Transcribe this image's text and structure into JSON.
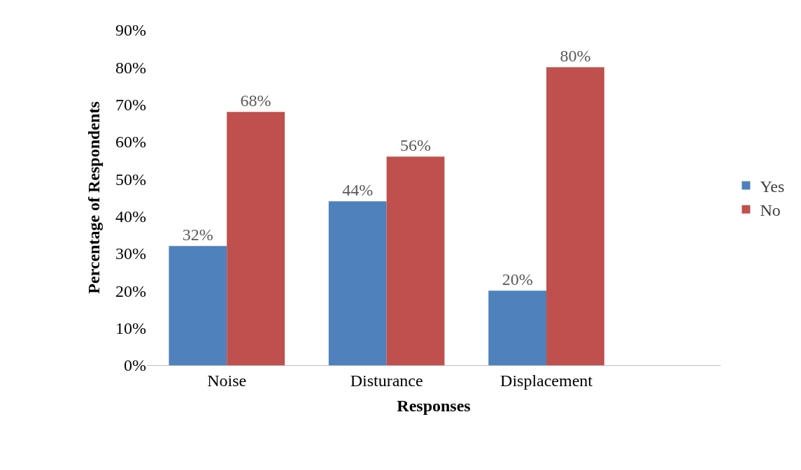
{
  "chart_data": {
    "type": "bar",
    "xlabel": "Responses",
    "ylabel": "Percentage of Respondents",
    "categories": [
      "Noise",
      "Disturance",
      "Displacement"
    ],
    "series": [
      {
        "name": "Yes",
        "color": "#4f81bd",
        "values": [
          32,
          44,
          20
        ]
      },
      {
        "name": "No",
        "color": "#c0504d",
        "values": [
          68,
          56,
          80
        ]
      }
    ],
    "ylim": [
      0,
      90
    ],
    "yticks": [
      {
        "value": 0,
        "label": "0%"
      },
      {
        "value": 10,
        "label": "10%"
      },
      {
        "value": 20,
        "label": "20%"
      },
      {
        "value": 30,
        "label": "30%"
      },
      {
        "value": 40,
        "label": "40%"
      },
      {
        "value": 50,
        "label": "50%"
      },
      {
        "value": 60,
        "label": "60%"
      },
      {
        "value": 70,
        "label": "70%"
      },
      {
        "value": 80,
        "label": "80%"
      },
      {
        "value": 90,
        "label": "90%"
      }
    ],
    "value_labels": [
      [
        "32%",
        "44%",
        "20%"
      ],
      [
        "68%",
        "56%",
        "80%"
      ]
    ],
    "grid": false,
    "legend": "right"
  }
}
